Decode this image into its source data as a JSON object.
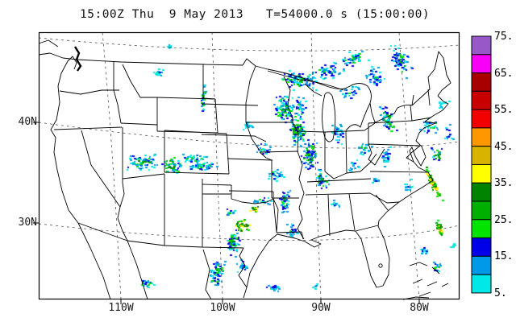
{
  "title": {
    "left": "15:00Z Thu  9 May 2013",
    "right": "T=54000.0 s (15:00:00)"
  },
  "axes": {
    "lat": [
      "40N",
      "30N"
    ],
    "lon": [
      "110W",
      "100W",
      "90W",
      "80W"
    ]
  },
  "colorbar": {
    "tick_labels_top_to_bottom": [
      "75.",
      "65.",
      "55.",
      "45.",
      "35.",
      "25.",
      "15.",
      "5."
    ],
    "cell_colors_top_to_bottom": [
      "#9858C8",
      "#F800F8",
      "#A80000",
      "#C80000",
      "#F20000",
      "#FF9800",
      "#D8B400",
      "#FFFF00",
      "#008400",
      "#00B000",
      "#00E400",
      "#0000E8",
      "#0098E8",
      "#00E8E8"
    ],
    "border_color": "#000000"
  },
  "radar": {
    "levels_dbz": [
      5,
      10,
      15,
      20,
      25,
      30,
      35,
      40,
      45,
      50,
      55,
      60,
      65,
      70
    ],
    "palette": [
      "#00E8E8",
      "#0098E8",
      "#0000E8",
      "#00E400",
      "#00B000",
      "#008400",
      "#FFFF00",
      "#D8B400",
      "#FF9800",
      "#F20000",
      "#C80000",
      "#A80000",
      "#F800F8",
      "#9858C8"
    ],
    "blobs": [
      [
        368,
        100,
        30,
        14,
        90,
        0,
        5,
        0
      ],
      [
        352,
        135,
        16,
        22,
        110,
        0,
        5,
        0
      ],
      [
        368,
        160,
        14,
        25,
        100,
        0,
        6,
        0
      ],
      [
        383,
        192,
        12,
        22,
        90,
        1,
        6,
        0
      ],
      [
        398,
        222,
        10,
        16,
        45,
        0,
        6,
        0
      ],
      [
        372,
        130,
        10,
        12,
        30,
        0,
        4,
        0
      ],
      [
        404,
        88,
        26,
        12,
        60,
        0,
        4,
        -15
      ],
      [
        438,
        72,
        22,
        12,
        50,
        0,
        4,
        -20
      ],
      [
        465,
        95,
        14,
        18,
        40,
        0,
        3,
        -30
      ],
      [
        432,
        115,
        16,
        10,
        30,
        0,
        3,
        0
      ],
      [
        418,
        165,
        10,
        18,
        35,
        0,
        3,
        0
      ],
      [
        450,
        185,
        12,
        12,
        25,
        0,
        3,
        0
      ],
      [
        480,
        150,
        12,
        25,
        60,
        0,
        5,
        -20
      ],
      [
        495,
        75,
        14,
        28,
        70,
        0,
        5,
        -35
      ],
      [
        478,
        195,
        10,
        14,
        30,
        0,
        3,
        0
      ],
      [
        505,
        230,
        8,
        10,
        15,
        0,
        2,
        0
      ],
      [
        532,
        155,
        14,
        12,
        30,
        0,
        4,
        0
      ],
      [
        548,
        128,
        10,
        8,
        12,
        0,
        1,
        0
      ],
      [
        556,
        165,
        8,
        14,
        12,
        0,
        3,
        0
      ],
      [
        536,
        228,
        5,
        26,
        80,
        3,
        9,
        -28
      ],
      [
        540,
        190,
        10,
        10,
        25,
        0,
        8,
        0
      ],
      [
        545,
        285,
        4,
        16,
        35,
        3,
        9,
        -20
      ],
      [
        525,
        310,
        6,
        10,
        15,
        0,
        3,
        0
      ],
      [
        540,
        332,
        8,
        10,
        15,
        0,
        4,
        0
      ],
      [
        300,
        279,
        12,
        9,
        45,
        3,
        9,
        0
      ],
      [
        315,
        259,
        8,
        5,
        20,
        4,
        8,
        0
      ],
      [
        325,
        249,
        14,
        5,
        20,
        0,
        4,
        0
      ],
      [
        285,
        263,
        8,
        6,
        15,
        0,
        4,
        0
      ],
      [
        287,
        300,
        12,
        20,
        70,
        0,
        5,
        0
      ],
      [
        268,
        338,
        12,
        22,
        70,
        0,
        5,
        0
      ],
      [
        300,
        330,
        8,
        10,
        20,
        0,
        3,
        0
      ],
      [
        338,
        357,
        14,
        6,
        20,
        0,
        3,
        0
      ],
      [
        182,
        352,
        16,
        7,
        25,
        0,
        4,
        0
      ],
      [
        175,
        200,
        28,
        12,
        80,
        0,
        5,
        0
      ],
      [
        213,
        205,
        18,
        12,
        60,
        0,
        6,
        0
      ],
      [
        250,
        205,
        22,
        8,
        50,
        0,
        4,
        0
      ],
      [
        240,
        196,
        30,
        6,
        40,
        0,
        4,
        0
      ],
      [
        352,
        250,
        10,
        20,
        45,
        0,
        4,
        0
      ],
      [
        362,
        285,
        10,
        14,
        30,
        0,
        3,
        0
      ],
      [
        340,
        215,
        14,
        12,
        30,
        0,
        3,
        0
      ],
      [
        325,
        185,
        14,
        12,
        25,
        0,
        3,
        0
      ],
      [
        308,
        155,
        10,
        8,
        15,
        0,
        2,
        0
      ],
      [
        251,
        125,
        4,
        25,
        35,
        0,
        4,
        0
      ],
      [
        197,
        90,
        10,
        6,
        15,
        0,
        4,
        0
      ],
      [
        208,
        57,
        8,
        4,
        8,
        0,
        1,
        0
      ],
      [
        438,
        205,
        10,
        10,
        15,
        0,
        2,
        0
      ],
      [
        465,
        225,
        8,
        8,
        10,
        0,
        2,
        0
      ],
      [
        415,
        252,
        8,
        8,
        10,
        0,
        2,
        0
      ],
      [
        390,
        355,
        6,
        4,
        6,
        0,
        1,
        0
      ],
      [
        560,
        305,
        5,
        6,
        6,
        0,
        0,
        0
      ]
    ]
  }
}
